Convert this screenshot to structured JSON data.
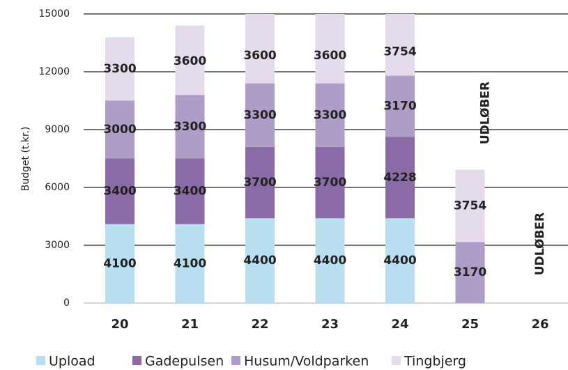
{
  "chart_data": {
    "type": "stacked_bar",
    "y_label": "Budget (t.kr.)",
    "categories": [
      "20",
      "21",
      "22",
      "23",
      "24",
      "25",
      "26"
    ],
    "series": [
      {
        "name": "Upload",
        "color": "#b8dff0",
        "values": [
          4100,
          4100,
          4400,
          4400,
          4400,
          null,
          null
        ]
      },
      {
        "name": "Gadepulsen",
        "color": "#8a6ba8",
        "values": [
          3400,
          3400,
          3700,
          3700,
          4228,
          null,
          null
        ]
      },
      {
        "name": "Husum/Voldparken",
        "color": "#ae9dc7",
        "values": [
          3000,
          3300,
          3300,
          3300,
          3170,
          3170,
          null
        ]
      },
      {
        "name": "Tingbjerg",
        "color": "#e4dcec",
        "values": [
          3300,
          3600,
          3600,
          3600,
          3754,
          3754,
          null
        ]
      }
    ],
    "annotations": [
      "UDLØBER",
      "UDLØBER"
    ],
    "ylim": [
      0,
      15000
    ],
    "yticks": [
      0,
      3000,
      6000,
      9000,
      12000,
      15000
    ],
    "grid": true
  }
}
